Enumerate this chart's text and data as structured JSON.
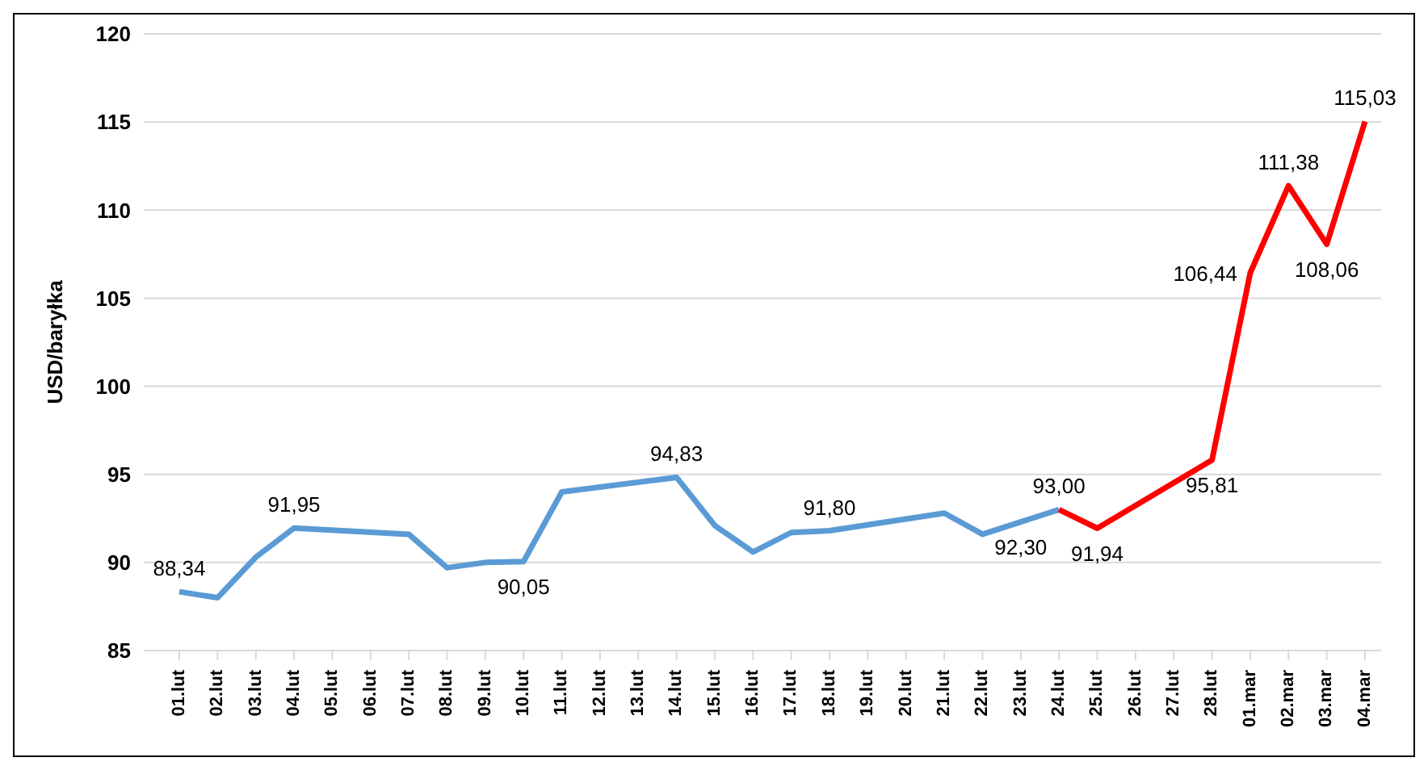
{
  "chart_data": {
    "type": "line",
    "ylabel": "USD/baryłka",
    "categories": [
      "01.lut",
      "02.lut",
      "03.lut",
      "04.lut",
      "05.lut",
      "06.lut",
      "07.lut",
      "08.lut",
      "09.lut",
      "10.lut",
      "11.lut",
      "12.lut",
      "13.lut",
      "14.lut",
      "15.lut",
      "16.lut",
      "17.lut",
      "18.lut",
      "19.lut",
      "20.lut",
      "21.lut",
      "22.lut",
      "23.lut",
      "24.lut",
      "25.lut",
      "26.lut",
      "27.lut",
      "28.lut",
      "01.mar",
      "02.mar",
      "03.mar",
      "04.mar"
    ],
    "series": [
      {
        "color": "#5b9bd5",
        "values": [
          88.34,
          88.0,
          90.3,
          91.95,
          null,
          null,
          91.6,
          89.7,
          90.0,
          90.05,
          94.0,
          null,
          null,
          94.83,
          92.1,
          90.6,
          91.7,
          91.8,
          null,
          null,
          92.8,
          91.6,
          92.3,
          93.0,
          null,
          null,
          null,
          null,
          null,
          null,
          null,
          null
        ],
        "value_labels": [
          "88,34",
          null,
          null,
          "91,95",
          null,
          null,
          null,
          null,
          null,
          "90,05",
          null,
          null,
          null,
          "94,83",
          null,
          null,
          null,
          "91,80",
          null,
          null,
          null,
          null,
          "92,30",
          "93,00",
          null,
          null,
          null,
          null,
          null,
          null,
          null,
          null
        ]
      },
      {
        "color": "#ff0000",
        "values": [
          null,
          null,
          null,
          null,
          null,
          null,
          null,
          null,
          null,
          null,
          null,
          null,
          null,
          null,
          null,
          null,
          null,
          null,
          null,
          null,
          null,
          null,
          null,
          93.0,
          91.94,
          null,
          null,
          95.81,
          106.44,
          111.38,
          108.06,
          115.03
        ],
        "value_labels": [
          null,
          null,
          null,
          null,
          null,
          null,
          null,
          null,
          null,
          null,
          null,
          null,
          null,
          null,
          null,
          null,
          null,
          null,
          null,
          null,
          null,
          null,
          null,
          null,
          "91,94",
          null,
          null,
          "95,81",
          "106,44",
          "111,38",
          "108,06",
          "115,03"
        ]
      }
    ],
    "ylim": [
      85,
      120
    ],
    "yticks": [
      85,
      90,
      95,
      100,
      105,
      110,
      115,
      120
    ],
    "grid": "y",
    "marker": "none",
    "line_style": "solid",
    "legend": false
  }
}
